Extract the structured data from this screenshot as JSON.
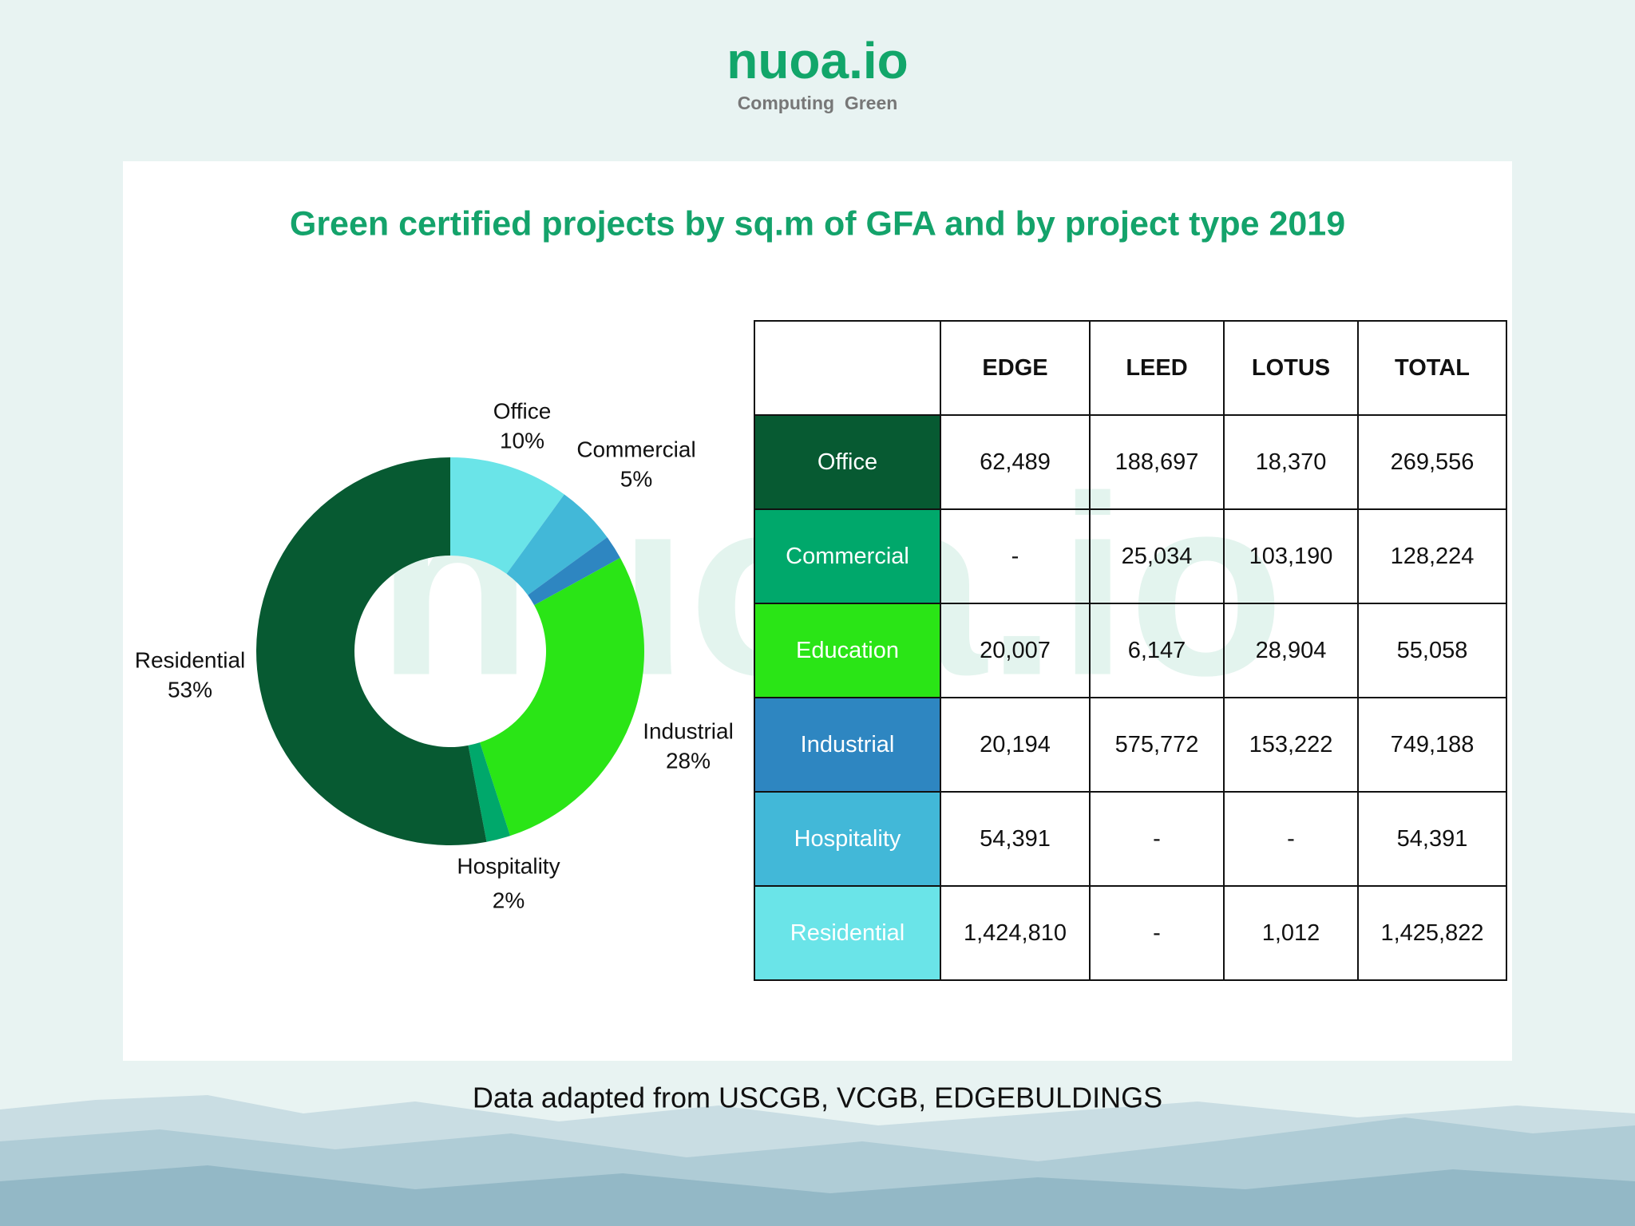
{
  "header": {
    "brand": "nuoa.io",
    "tagline": "Computing  Green"
  },
  "chart_data": {
    "type": "pie",
    "donut": true,
    "title": "Green certified projects by sq.m of GFA and by project type 2019",
    "categories": [
      "Office",
      "Commercial",
      null,
      "Industrial",
      "Hospitality",
      "Residential"
    ],
    "values": [
      10,
      5,
      2,
      28,
      2,
      53
    ],
    "value_labels": [
      "10%",
      "5%",
      null,
      "28%",
      "2%",
      "53%"
    ],
    "colors": [
      "#6ae4e8",
      "#42b8d8",
      "#2e86c1",
      "#2ae516",
      "#00a86b",
      "#075a32"
    ]
  },
  "table": {
    "columns": [
      "EDGE",
      "LEED",
      "LOTUS",
      "TOTAL"
    ],
    "rows": [
      {
        "label": "Office",
        "color": "#075a32",
        "cells": [
          "62,489",
          "188,697",
          "18,370",
          "269,556"
        ]
      },
      {
        "label": "Commercial",
        "color": "#00a86b",
        "cells": [
          "-",
          "25,034",
          "103,190",
          "128,224"
        ]
      },
      {
        "label": "Education",
        "color": "#2ae516",
        "cells": [
          "20,007",
          "6,147",
          "28,904",
          "55,058"
        ]
      },
      {
        "label": "Industrial",
        "color": "#2e86c1",
        "cells": [
          "20,194",
          "575,772",
          "153,222",
          "749,188"
        ]
      },
      {
        "label": "Hospitality",
        "color": "#42b8d8",
        "cells": [
          "54,391",
          "-",
          "-",
          "54,391"
        ]
      },
      {
        "label": "Residential",
        "color": "#6ae4e8",
        "cells": [
          "1,424,810",
          "-",
          "1,012",
          "1,425,822"
        ]
      }
    ]
  },
  "footer": {
    "source": "Data adapted from USCGB, VCGB, EDGEBULDINGS"
  }
}
